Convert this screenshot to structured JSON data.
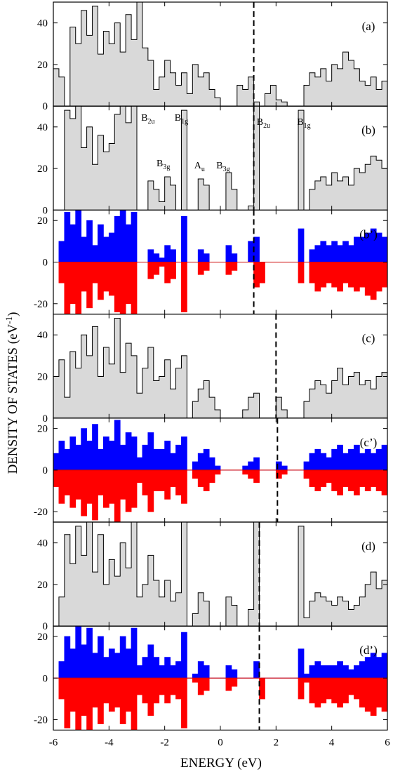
{
  "figure": {
    "ylabel": "DENSITY OF STATES (eV",
    "ylabel_sup": "-1",
    "ylabel_tail": ")",
    "xlabel": "ENERGY (eV)"
  },
  "colors": {
    "up": "#0000ff",
    "down": "#ff0000",
    "fill": "#d9d9d9",
    "line": "#000000",
    "zero_line": "#cc0000"
  },
  "chart_data": [
    {
      "type": "area",
      "id": "a",
      "label": "(a)",
      "spin": false,
      "xlim": [
        -6,
        6
      ],
      "ylim": [
        0,
        50
      ],
      "yticks": [
        0,
        20,
        40
      ],
      "fermi": 1.2,
      "x": [
        -6.0,
        -5.8,
        -5.6,
        -5.4,
        -5.2,
        -5.0,
        -4.8,
        -4.6,
        -4.4,
        -4.2,
        -4.0,
        -3.8,
        -3.6,
        -3.4,
        -3.2,
        -3.0,
        -2.8,
        -2.6,
        -2.4,
        -2.2,
        -2.0,
        -1.8,
        -1.6,
        -1.4,
        -1.2,
        -1.0,
        -0.8,
        -0.6,
        -0.4,
        -0.2,
        0.0,
        0.2,
        0.4,
        0.6,
        0.8,
        1.0,
        1.2,
        1.4,
        1.6,
        1.8,
        2.0,
        2.2,
        2.4,
        2.6,
        2.8,
        3.0,
        3.2,
        3.4,
        3.6,
        3.8,
        4.0,
        4.2,
        4.4,
        4.6,
        4.8,
        5.0,
        5.2,
        5.4,
        5.6,
        5.8,
        6.0
      ],
      "y": [
        18,
        14,
        0,
        38,
        30,
        46,
        34,
        48,
        25,
        36,
        30,
        40,
        26,
        44,
        32,
        50,
        28,
        22,
        8,
        14,
        22,
        16,
        10,
        16,
        6,
        20,
        14,
        16,
        8,
        4,
        0,
        0,
        0,
        10,
        8,
        14,
        2,
        0,
        6,
        10,
        3,
        2,
        0,
        0,
        0,
        10,
        16,
        14,
        18,
        12,
        20,
        18,
        26,
        22,
        18,
        12,
        10,
        14,
        8,
        12,
        16
      ]
    },
    {
      "type": "area",
      "id": "b",
      "label": "(b)",
      "spin": false,
      "xlim": [
        -6,
        6
      ],
      "ylim": [
        0,
        50
      ],
      "yticks": [
        0,
        20,
        40
      ],
      "fermi": 1.2,
      "x": [
        -6.0,
        -5.8,
        -5.6,
        -5.4,
        -5.2,
        -5.0,
        -4.8,
        -4.6,
        -4.4,
        -4.2,
        -4.0,
        -3.8,
        -3.6,
        -3.4,
        -3.2,
        -3.0,
        -2.8,
        -2.6,
        -2.4,
        -2.2,
        -2.0,
        -1.8,
        -1.6,
        -1.4,
        -1.2,
        -1.0,
        -0.8,
        -0.6,
        -0.4,
        -0.2,
        0.0,
        0.2,
        0.4,
        0.6,
        0.8,
        1.0,
        1.2,
        1.4,
        1.6,
        1.8,
        2.0,
        2.2,
        2.4,
        2.6,
        2.8,
        3.0,
        3.2,
        3.4,
        3.6,
        3.8,
        4.0,
        4.2,
        4.4,
        4.6,
        4.8,
        5.0,
        5.2,
        5.4,
        5.6,
        5.8,
        6.0
      ],
      "y": [
        0,
        0,
        48,
        44,
        50,
        30,
        40,
        22,
        36,
        28,
        32,
        46,
        50,
        42,
        50,
        0,
        0,
        14,
        10,
        4,
        16,
        12,
        0,
        48,
        0,
        0,
        15,
        12,
        0,
        0,
        0,
        18,
        10,
        0,
        0,
        2,
        50,
        0,
        0,
        0,
        0,
        0,
        0,
        0,
        48,
        0,
        10,
        14,
        16,
        12,
        18,
        14,
        16,
        12,
        20,
        18,
        22,
        26,
        24,
        20,
        18
      ]
    },
    {
      "type": "area",
      "id": "b2",
      "label": "(b’)",
      "spin": true,
      "xlim": [
        -6,
        6
      ],
      "ylim": [
        -25,
        25
      ],
      "yticks": [
        -20,
        0,
        20
      ],
      "fermi": 1.2,
      "x": [
        -6.0,
        -5.8,
        -5.6,
        -5.4,
        -5.2,
        -5.0,
        -4.8,
        -4.6,
        -4.4,
        -4.2,
        -4.0,
        -3.8,
        -3.6,
        -3.4,
        -3.2,
        -3.0,
        -2.8,
        -2.6,
        -2.4,
        -2.2,
        -2.0,
        -1.8,
        -1.6,
        -1.4,
        -1.2,
        -1.0,
        -0.8,
        -0.6,
        -0.4,
        -0.2,
        0.0,
        0.2,
        0.4,
        0.6,
        0.8,
        1.0,
        1.2,
        1.4,
        1.6,
        1.8,
        2.0,
        2.2,
        2.4,
        2.6,
        2.8,
        3.0,
        3.2,
        3.4,
        3.6,
        3.8,
        4.0,
        4.2,
        4.4,
        4.6,
        4.8,
        5.0,
        5.2,
        5.4,
        5.6,
        5.8,
        6.0
      ],
      "up": [
        0,
        10,
        24,
        18,
        25,
        12,
        20,
        8,
        18,
        12,
        14,
        22,
        25,
        18,
        24,
        0,
        0,
        6,
        4,
        2,
        8,
        6,
        0,
        22,
        0,
        0,
        6,
        4,
        0,
        0,
        0,
        8,
        4,
        0,
        0,
        10,
        12,
        0,
        0,
        0,
        0,
        0,
        0,
        0,
        16,
        0,
        6,
        8,
        10,
        8,
        10,
        8,
        10,
        8,
        12,
        12,
        14,
        16,
        14,
        12,
        10
      ],
      "down": [
        0,
        -10,
        -25,
        -20,
        -25,
        -14,
        -22,
        -10,
        -18,
        -14,
        -16,
        -24,
        -25,
        -20,
        -25,
        0,
        0,
        -8,
        -6,
        -2,
        -10,
        -8,
        0,
        -24,
        0,
        0,
        -6,
        -4,
        0,
        0,
        0,
        -6,
        -4,
        0,
        0,
        0,
        -12,
        -10,
        0,
        0,
        0,
        0,
        0,
        0,
        -10,
        0,
        -10,
        -14,
        -12,
        -10,
        -12,
        -14,
        -10,
        -12,
        -14,
        -12,
        -16,
        -18,
        -14,
        -12,
        -14
      ]
    },
    {
      "type": "area",
      "id": "c",
      "label": "(c)",
      "spin": false,
      "xlim": [
        -6,
        6
      ],
      "ylim": [
        0,
        50
      ],
      "yticks": [
        0,
        20,
        40
      ],
      "fermi": 2.0,
      "x": [
        -6.0,
        -5.8,
        -5.6,
        -5.4,
        -5.2,
        -5.0,
        -4.8,
        -4.6,
        -4.4,
        -4.2,
        -4.0,
        -3.8,
        -3.6,
        -3.4,
        -3.2,
        -3.0,
        -2.8,
        -2.6,
        -2.4,
        -2.2,
        -2.0,
        -1.8,
        -1.6,
        -1.4,
        -1.2,
        -1.0,
        -0.8,
        -0.6,
        -0.4,
        -0.2,
        0.0,
        0.2,
        0.4,
        0.6,
        0.8,
        1.0,
        1.2,
        1.4,
        1.6,
        1.8,
        2.0,
        2.2,
        2.4,
        2.6,
        2.8,
        3.0,
        3.2,
        3.4,
        3.6,
        3.8,
        4.0,
        4.2,
        4.4,
        4.6,
        4.8,
        5.0,
        5.2,
        5.4,
        5.6,
        5.8,
        6.0
      ],
      "y": [
        20,
        28,
        10,
        32,
        24,
        40,
        30,
        44,
        20,
        34,
        26,
        48,
        22,
        36,
        30,
        12,
        24,
        34,
        18,
        20,
        28,
        14,
        24,
        30,
        0,
        8,
        14,
        18,
        10,
        4,
        0,
        0,
        0,
        0,
        4,
        10,
        12,
        0,
        0,
        0,
        10,
        4,
        0,
        0,
        0,
        8,
        14,
        18,
        16,
        12,
        18,
        24,
        16,
        20,
        22,
        16,
        18,
        14,
        20,
        22,
        18
      ]
    },
    {
      "type": "area",
      "id": "c2",
      "label": "(c’)",
      "spin": true,
      "xlim": [
        -6,
        6
      ],
      "ylim": [
        -25,
        25
      ],
      "yticks": [
        -20,
        0,
        20
      ],
      "fermi": 2.05,
      "x": [
        -6.0,
        -5.8,
        -5.6,
        -5.4,
        -5.2,
        -5.0,
        -4.8,
        -4.6,
        -4.4,
        -4.2,
        -4.0,
        -3.8,
        -3.6,
        -3.4,
        -3.2,
        -3.0,
        -2.8,
        -2.6,
        -2.4,
        -2.2,
        -2.0,
        -1.8,
        -1.6,
        -1.4,
        -1.2,
        -1.0,
        -0.8,
        -0.6,
        -0.4,
        -0.2,
        0.0,
        0.2,
        0.4,
        0.6,
        0.8,
        1.0,
        1.2,
        1.4,
        1.6,
        1.8,
        2.0,
        2.2,
        2.4,
        2.6,
        2.8,
        3.0,
        3.2,
        3.4,
        3.6,
        3.8,
        4.0,
        4.2,
        4.4,
        4.6,
        4.8,
        5.0,
        5.2,
        5.4,
        5.6,
        5.8,
        6.0
      ],
      "up": [
        8,
        14,
        10,
        16,
        12,
        20,
        14,
        22,
        10,
        16,
        14,
        24,
        12,
        18,
        16,
        6,
        12,
        18,
        10,
        10,
        14,
        8,
        12,
        16,
        0,
        4,
        8,
        10,
        6,
        2,
        0,
        0,
        0,
        0,
        2,
        4,
        6,
        0,
        0,
        0,
        4,
        2,
        0,
        0,
        0,
        4,
        8,
        10,
        8,
        6,
        10,
        12,
        8,
        10,
        12,
        8,
        10,
        8,
        10,
        12,
        10
      ],
      "down": [
        -8,
        -16,
        -12,
        -18,
        -14,
        -22,
        -16,
        -24,
        -12,
        -18,
        -16,
        -25,
        -14,
        -20,
        -18,
        -6,
        -12,
        -20,
        -10,
        -10,
        -14,
        -8,
        -12,
        -16,
        0,
        -4,
        -8,
        -10,
        -6,
        -2,
        0,
        0,
        0,
        0,
        -2,
        -4,
        -6,
        0,
        0,
        0,
        -4,
        -2,
        0,
        0,
        0,
        -4,
        -8,
        -10,
        -8,
        -6,
        -10,
        -12,
        -8,
        -10,
        -12,
        -8,
        -10,
        -8,
        -10,
        -12,
        -10
      ]
    },
    {
      "type": "area",
      "id": "d",
      "label": "(d)",
      "spin": false,
      "xlim": [
        -6,
        6
      ],
      "ylim": [
        0,
        50
      ],
      "yticks": [
        0,
        20,
        40
      ],
      "fermi": 1.4,
      "x": [
        -6.0,
        -5.8,
        -5.6,
        -5.4,
        -5.2,
        -5.0,
        -4.8,
        -4.6,
        -4.4,
        -4.2,
        -4.0,
        -3.8,
        -3.6,
        -3.4,
        -3.2,
        -3.0,
        -2.8,
        -2.6,
        -2.4,
        -2.2,
        -2.0,
        -1.8,
        -1.6,
        -1.4,
        -1.2,
        -1.0,
        -0.8,
        -0.6,
        -0.4,
        -0.2,
        0.0,
        0.2,
        0.4,
        0.6,
        0.8,
        1.0,
        1.2,
        1.4,
        1.6,
        1.8,
        2.0,
        2.2,
        2.4,
        2.6,
        2.8,
        3.0,
        3.2,
        3.4,
        3.6,
        3.8,
        4.0,
        4.2,
        4.4,
        4.6,
        4.8,
        5.0,
        5.2,
        5.4,
        5.6,
        5.8,
        6.0
      ],
      "y": [
        0,
        14,
        44,
        30,
        48,
        34,
        50,
        26,
        44,
        20,
        32,
        24,
        40,
        28,
        50,
        14,
        20,
        34,
        22,
        14,
        22,
        12,
        16,
        50,
        0,
        6,
        16,
        12,
        0,
        0,
        0,
        14,
        10,
        0,
        0,
        8,
        50,
        0,
        0,
        0,
        0,
        0,
        0,
        0,
        48,
        4,
        12,
        16,
        14,
        12,
        10,
        14,
        12,
        8,
        10,
        14,
        20,
        26,
        18,
        22,
        20
      ]
    },
    {
      "type": "area",
      "id": "d2",
      "label": "(d’)",
      "spin": true,
      "xlim": [
        -6,
        6
      ],
      "ylim": [
        -25,
        25
      ],
      "yticks": [
        -20,
        0,
        20
      ],
      "fermi": 1.4,
      "x": [
        -6.0,
        -5.8,
        -5.6,
        -5.4,
        -5.2,
        -5.0,
        -4.8,
        -4.6,
        -4.4,
        -4.2,
        -4.0,
        -3.8,
        -3.6,
        -3.4,
        -3.2,
        -3.0,
        -2.8,
        -2.6,
        -2.4,
        -2.2,
        -2.0,
        -1.8,
        -1.6,
        -1.4,
        -1.2,
        -1.0,
        -0.8,
        -0.6,
        -0.4,
        -0.2,
        0.0,
        0.2,
        0.4,
        0.6,
        0.8,
        1.0,
        1.2,
        1.4,
        1.6,
        1.8,
        2.0,
        2.2,
        2.4,
        2.6,
        2.8,
        3.0,
        3.2,
        3.4,
        3.6,
        3.8,
        4.0,
        4.2,
        4.4,
        4.6,
        4.8,
        5.0,
        5.2,
        5.4,
        5.6,
        5.8,
        6.0
      ],
      "up": [
        0,
        8,
        20,
        14,
        25,
        16,
        24,
        12,
        20,
        10,
        14,
        12,
        20,
        14,
        24,
        6,
        10,
        16,
        10,
        6,
        10,
        6,
        8,
        22,
        0,
        2,
        8,
        6,
        0,
        0,
        0,
        6,
        4,
        0,
        0,
        0,
        8,
        0,
        0,
        0,
        0,
        0,
        0,
        0,
        14,
        2,
        6,
        8,
        6,
        6,
        6,
        8,
        6,
        4,
        6,
        8,
        10,
        12,
        10,
        12,
        10
      ],
      "down": [
        0,
        -10,
        -24,
        -16,
        -25,
        -18,
        -25,
        -14,
        -22,
        -12,
        -16,
        -14,
        -22,
        -16,
        -25,
        -8,
        -12,
        -18,
        -12,
        -8,
        -12,
        -8,
        -10,
        -24,
        0,
        -2,
        -8,
        -6,
        0,
        0,
        0,
        -6,
        -4,
        0,
        0,
        0,
        0,
        -10,
        0,
        0,
        0,
        0,
        0,
        0,
        -10,
        -2,
        -12,
        -14,
        -12,
        -10,
        -12,
        -14,
        -12,
        -8,
        -10,
        -14,
        -16,
        -18,
        -14,
        -16,
        -14
      ]
    }
  ],
  "peak_labels": [
    {
      "base": "B",
      "sub": "2u",
      "x": -2.6,
      "y": 43
    },
    {
      "base": "B",
      "sub": "1g",
      "x": -1.4,
      "y": 43
    },
    {
      "base": "B",
      "sub": "3g",
      "x": -2.05,
      "y": 21
    },
    {
      "base": "A",
      "sub": "u",
      "x": -0.75,
      "y": 20
    },
    {
      "base": "B",
      "sub": "3g",
      "x": 0.1,
      "y": 20
    },
    {
      "base": "B",
      "sub": "2u",
      "x": 1.55,
      "y": 41
    },
    {
      "base": "B",
      "sub": "1g",
      "x": 3.0,
      "y": 41
    }
  ],
  "x_ticks": [
    -6,
    -4,
    -2,
    0,
    2,
    4,
    6
  ]
}
